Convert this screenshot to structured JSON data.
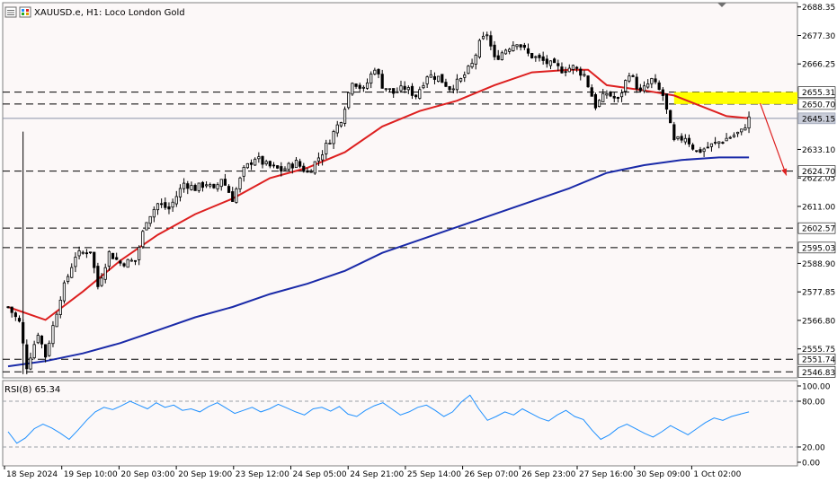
{
  "header": {
    "symbol_text": "XAUUSD.e, H1:  Loco London Gold"
  },
  "rsi_header": {
    "text": "RSI(8) 65.34"
  },
  "colors": {
    "background": "#fcf8f8",
    "bull_candle": "#000000",
    "bear_candle": "#000000",
    "ma_fast": "#dd2020",
    "ma_slow": "#1a2aa8",
    "rsi_line": "#1e90ff",
    "resistance_zone": "#ffff00",
    "arrow": "#dd2020",
    "levels": "#000000"
  },
  "chart_data": [
    {
      "type": "candlestick",
      "title": "XAUUSD.e, H1:  Loco London Gold",
      "ylim": [
        2544.5,
        2690.0
      ],
      "y_ticks": [
        "2688.35",
        "2677.30",
        "2666.25",
        "2633.10",
        "2622.05",
        "2611.00",
        "2588.90",
        "2577.85",
        "2566.80",
        "2555.75"
      ],
      "time_labels": [
        "18 Sep 2024",
        "19 Sep 10:00",
        "20 Sep 03:00",
        "20 Sep 19:00",
        "23 Sep 12:00",
        "24 Sep 05:00",
        "24 Sep 21:00",
        "25 Sep 14:00",
        "26 Sep 07:00",
        "26 Sep 23:00",
        "27 Sep 16:00",
        "30 Sep 09:00",
        "1 Oct 02:00"
      ],
      "close_points": [
        [
          0,
          2572
        ],
        [
          3,
          2566
        ],
        [
          5,
          2549
        ],
        [
          8,
          2562
        ],
        [
          10,
          2553
        ],
        [
          14,
          2576
        ],
        [
          18,
          2592
        ],
        [
          22,
          2594
        ],
        [
          24,
          2580
        ],
        [
          27,
          2593
        ],
        [
          30,
          2589
        ],
        [
          34,
          2590
        ],
        [
          37,
          2606
        ],
        [
          40,
          2612
        ],
        [
          43,
          2610
        ],
        [
          47,
          2620
        ],
        [
          50,
          2618
        ],
        [
          53,
          2620
        ],
        [
          55,
          2617
        ],
        [
          57,
          2622
        ],
        [
          60,
          2614
        ],
        [
          63,
          2625
        ],
        [
          66,
          2630
        ],
        [
          69,
          2627
        ],
        [
          73,
          2625
        ],
        [
          77,
          2628
        ],
        [
          80,
          2624
        ],
        [
          84,
          2632
        ],
        [
          86,
          2637
        ],
        [
          89,
          2645
        ],
        [
          92,
          2660
        ],
        [
          95,
          2656
        ],
        [
          98,
          2665
        ],
        [
          100,
          2658
        ],
        [
          103,
          2655
        ],
        [
          106,
          2657
        ],
        [
          109,
          2654
        ],
        [
          112,
          2662
        ],
        [
          115,
          2661
        ],
        [
          118,
          2657
        ],
        [
          121,
          2660
        ],
        [
          124,
          2666
        ],
        [
          126,
          2674
        ],
        [
          128,
          2678
        ],
        [
          130,
          2668
        ],
        [
          133,
          2672
        ],
        [
          136,
          2675
        ],
        [
          139,
          2670
        ],
        [
          142,
          2668
        ],
        [
          145,
          2666
        ],
        [
          148,
          2664
        ],
        [
          151,
          2665
        ],
        [
          154,
          2662
        ],
        [
          157,
          2650
        ],
        [
          160,
          2655
        ],
        [
          163,
          2652
        ],
        [
          166,
          2663
        ],
        [
          169,
          2655
        ],
        [
          172,
          2660
        ],
        [
          175,
          2654
        ],
        [
          178,
          2636
        ],
        [
          181,
          2638
        ],
        [
          184,
          2632
        ],
        [
          187,
          2634
        ],
        [
          190,
          2636
        ],
        [
          193,
          2638
        ],
        [
          196,
          2640
        ],
        [
          198,
          2645
        ]
      ],
      "ma_fast_points": [
        [
          0,
          2572
        ],
        [
          10,
          2567
        ],
        [
          20,
          2578
        ],
        [
          30,
          2590
        ],
        [
          40,
          2600
        ],
        [
          50,
          2608
        ],
        [
          60,
          2614
        ],
        [
          70,
          2622
        ],
        [
          80,
          2626
        ],
        [
          90,
          2632
        ],
        [
          100,
          2642
        ],
        [
          110,
          2648
        ],
        [
          120,
          2652
        ],
        [
          130,
          2658
        ],
        [
          140,
          2663
        ],
        [
          150,
          2664
        ],
        [
          155,
          2664
        ],
        [
          160,
          2658
        ],
        [
          170,
          2656
        ],
        [
          178,
          2654
        ],
        [
          185,
          2650
        ],
        [
          192,
          2646
        ],
        [
          198,
          2645.15
        ]
      ],
      "ma_slow_points": [
        [
          0,
          2549
        ],
        [
          10,
          2551
        ],
        [
          20,
          2554
        ],
        [
          30,
          2558
        ],
        [
          40,
          2563
        ],
        [
          50,
          2568
        ],
        [
          60,
          2572
        ],
        [
          70,
          2577
        ],
        [
          80,
          2581
        ],
        [
          90,
          2586
        ],
        [
          100,
          2593
        ],
        [
          110,
          2598
        ],
        [
          120,
          2603
        ],
        [
          130,
          2608
        ],
        [
          140,
          2613
        ],
        [
          150,
          2618
        ],
        [
          160,
          2624
        ],
        [
          170,
          2627
        ],
        [
          180,
          2629
        ],
        [
          190,
          2630
        ],
        [
          198,
          2630
        ]
      ],
      "levels": [
        {
          "price": 2655.31,
          "label": "2655.31"
        },
        {
          "price": 2650.7,
          "label": "2650.70"
        },
        {
          "price": 2645.15,
          "label": "2645.15"
        },
        {
          "price": 2624.7,
          "label": "2624.70"
        },
        {
          "price": 2602.57,
          "label": "2602.57"
        },
        {
          "price": 2595.03,
          "label": "2595.03"
        },
        {
          "price": 2551.74,
          "label": "2551.74"
        },
        {
          "price": 2546.83,
          "label": "2546.83"
        }
      ],
      "resistance_zone": {
        "from": 2650.7,
        "to": 2655.31,
        "start_index": 178
      },
      "forecast_arrow": {
        "from": [
          201,
          2651
        ],
        "to": [
          208,
          2623
        ]
      }
    },
    {
      "type": "line",
      "title": "RSI(8) 65.34",
      "ylim": [
        0,
        100
      ],
      "y_ticks": [
        "100.00",
        "80.00",
        "20.00",
        "0.00"
      ],
      "levels": [
        80,
        20
      ],
      "values": [
        40,
        25,
        32,
        44,
        50,
        45,
        38,
        30,
        42,
        55,
        66,
        72,
        69,
        74,
        80,
        75,
        70,
        78,
        72,
        75,
        68,
        70,
        66,
        73,
        78,
        71,
        64,
        68,
        72,
        66,
        70,
        76,
        71,
        66,
        62,
        70,
        72,
        67,
        73,
        63,
        60,
        68,
        74,
        78,
        70,
        62,
        66,
        72,
        75,
        68,
        60,
        66,
        79,
        88,
        70,
        55,
        60,
        66,
        62,
        70,
        64,
        58,
        54,
        62,
        68,
        60,
        56,
        42,
        30,
        36,
        45,
        50,
        44,
        38,
        33,
        40,
        48,
        42,
        36,
        44,
        52,
        58,
        55,
        60,
        63,
        66
      ],
      "last_value": 65.34
    }
  ]
}
